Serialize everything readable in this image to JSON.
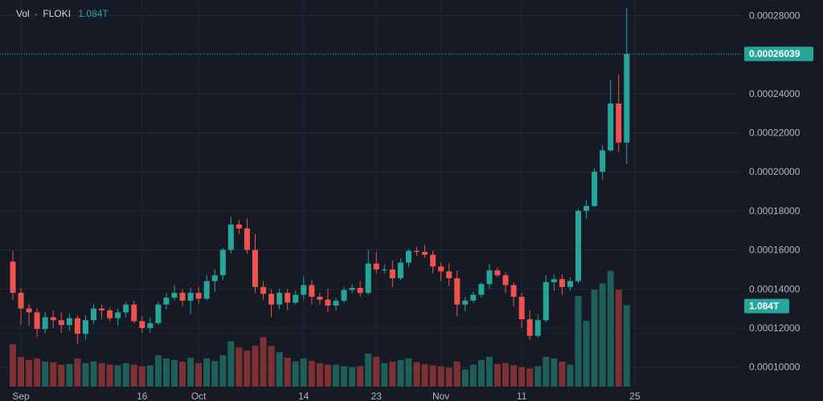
{
  "legend": {
    "vol_label": "Vol",
    "separator": "·",
    "symbol": "FLOKI",
    "volume_value": "1.084T"
  },
  "colors": {
    "background": "#161a25",
    "grid": "#232734",
    "up": "#26a69a",
    "down": "#ef5350",
    "vol_up": "#1e5f59",
    "vol_down": "#7d3134",
    "text": "#b2b5be"
  },
  "chart_data": {
    "type": "candlestick",
    "ylim": [
      9e-05,
      0.000288
    ],
    "y_ticks": [
      "0.00010000",
      "0.00012000",
      "0.00014000",
      "0.00016000",
      "0.00018000",
      "0.00020000",
      "0.00022000",
      "0.00024000",
      "0.00026000",
      "0.00028000"
    ],
    "x_ticks": [
      {
        "index": 1,
        "label": "Sep"
      },
      {
        "index": 16,
        "label": "16"
      },
      {
        "index": 23,
        "label": "Oct"
      },
      {
        "index": 36,
        "label": "14"
      },
      {
        "index": 45,
        "label": "23"
      },
      {
        "index": 53,
        "label": "Nov"
      },
      {
        "index": 63,
        "label": "11"
      },
      {
        "index": 77,
        "label": "25"
      }
    ],
    "last_price_label": "0.00026039",
    "last_price": 0.00026039,
    "last_volume_label": "1.084T",
    "candles": [
      [
        0.000154,
        0.0001595,
        0.0001345,
        0.000138,
        "d",
        0.135
      ],
      [
        0.000138,
        0.0001405,
        0.0001215,
        0.00013,
        "d",
        0.095
      ],
      [
        0.00013,
        0.0001325,
        0.000121,
        0.000128,
        "d",
        0.085
      ],
      [
        0.000128,
        0.00013,
        0.0001155,
        0.0001195,
        "d",
        0.09
      ],
      [
        0.0001195,
        0.000128,
        0.000117,
        0.0001255,
        "u",
        0.08
      ],
      [
        0.0001255,
        0.000129,
        0.00012,
        0.000124,
        "d",
        0.078
      ],
      [
        0.000124,
        0.000128,
        0.0001175,
        0.0001215,
        "d",
        0.07
      ],
      [
        0.0001215,
        0.0001275,
        0.0001185,
        0.000125,
        "u",
        0.072
      ],
      [
        0.000125,
        0.0001265,
        0.000112,
        0.000117,
        "d",
        0.09
      ],
      [
        0.000117,
        0.0001265,
        0.000114,
        0.000124,
        "u",
        0.075
      ],
      [
        0.000124,
        0.0001325,
        0.000122,
        0.00013,
        "u",
        0.08
      ],
      [
        0.00013,
        0.000132,
        0.0001245,
        0.000129,
        "d",
        0.075
      ],
      [
        0.000129,
        0.0001305,
        0.0001235,
        0.000125,
        "d",
        0.07
      ],
      [
        0.000125,
        0.00013,
        0.000121,
        0.000128,
        "u",
        0.068
      ],
      [
        0.000128,
        0.0001335,
        0.0001255,
        0.000132,
        "u",
        0.075
      ],
      [
        0.000132,
        0.000134,
        0.0001225,
        0.0001235,
        "d",
        0.07
      ],
      [
        0.0001235,
        0.000126,
        0.0001175,
        0.00012,
        "d",
        0.065
      ],
      [
        0.00012,
        0.0001255,
        0.0001175,
        0.0001225,
        "u",
        0.068
      ],
      [
        0.0001225,
        0.0001335,
        0.0001215,
        0.000132,
        "u",
        0.1
      ],
      [
        0.000132,
        0.000138,
        0.0001295,
        0.0001355,
        "u",
        0.09
      ],
      [
        0.0001355,
        0.000142,
        0.000134,
        0.000138,
        "u",
        0.085
      ],
      [
        0.000138,
        0.00014,
        0.000131,
        0.000134,
        "d",
        0.08
      ],
      [
        0.000134,
        0.0001405,
        0.000127,
        0.000138,
        "u",
        0.092
      ],
      [
        0.000138,
        0.000141,
        0.0001325,
        0.000135,
        "d",
        0.075
      ],
      [
        0.000135,
        0.000147,
        0.000134,
        0.000144,
        "u",
        0.09
      ],
      [
        0.000144,
        0.00015,
        0.0001385,
        0.000147,
        "u",
        0.082
      ],
      [
        0.000147,
        0.000161,
        0.0001445,
        0.00016,
        "u",
        0.1
      ],
      [
        0.00016,
        0.000177,
        0.000158,
        0.000173,
        "u",
        0.145
      ],
      [
        0.000173,
        0.0001755,
        0.000168,
        0.000171,
        "d",
        0.125
      ],
      [
        0.000171,
        0.000176,
        0.000158,
        0.00016,
        "d",
        0.115
      ],
      [
        0.00016,
        0.000168,
        0.000138,
        0.000141,
        "d",
        0.13
      ],
      [
        0.000141,
        0.000144,
        0.0001345,
        0.0001375,
        "d",
        0.158
      ],
      [
        0.0001375,
        0.00014,
        0.0001255,
        0.000132,
        "d",
        0.13
      ],
      [
        0.000132,
        0.00014,
        0.0001295,
        0.000138,
        "u",
        0.11
      ],
      [
        0.000138,
        0.00014,
        0.000129,
        0.000133,
        "d",
        0.092
      ],
      [
        0.000133,
        0.000139,
        0.000132,
        0.000137,
        "u",
        0.08
      ],
      [
        0.000137,
        0.0001465,
        0.0001345,
        0.000142,
        "u",
        0.09
      ],
      [
        0.000142,
        0.0001445,
        0.000132,
        0.000136,
        "d",
        0.082
      ],
      [
        0.000136,
        0.000138,
        0.000132,
        0.0001345,
        "d",
        0.075
      ],
      [
        0.0001345,
        0.00014,
        0.000128,
        0.0001315,
        "d",
        0.07
      ],
      [
        0.0001315,
        0.0001355,
        0.000129,
        0.000134,
        "u",
        0.07
      ],
      [
        0.000134,
        0.000141,
        0.000133,
        0.0001395,
        "u",
        0.065
      ],
      [
        0.0001395,
        0.0001425,
        0.000138,
        0.0001405,
        "u",
        0.062
      ],
      [
        0.0001405,
        0.000144,
        0.000136,
        0.000138,
        "d",
        0.065
      ],
      [
        0.000138,
        0.00016,
        0.000137,
        0.000153,
        "u",
        0.105
      ],
      [
        0.000153,
        0.000159,
        0.000148,
        0.00015,
        "d",
        0.095
      ],
      [
        0.00015,
        0.0001525,
        0.000148,
        0.00015,
        "u",
        0.075
      ],
      [
        0.00015,
        0.0001545,
        0.000141,
        0.0001455,
        "d",
        0.08
      ],
      [
        0.0001455,
        0.0001555,
        0.0001445,
        0.0001535,
        "u",
        0.085
      ],
      [
        0.0001535,
        0.0001605,
        0.000151,
        0.0001595,
        "u",
        0.09
      ],
      [
        0.0001595,
        0.0001615,
        0.000157,
        0.000159,
        "d",
        0.078
      ],
      [
        0.000159,
        0.0001625,
        0.000156,
        0.0001575,
        "d",
        0.072
      ],
      [
        0.0001575,
        0.0001595,
        0.000148,
        0.0001515,
        "d",
        0.068
      ],
      [
        0.0001515,
        0.0001535,
        0.000144,
        0.000149,
        "d",
        0.065
      ],
      [
        0.000149,
        0.000153,
        0.0001415,
        0.0001455,
        "d",
        0.06
      ],
      [
        0.0001455,
        0.0001495,
        0.000126,
        0.000132,
        "d",
        0.08
      ],
      [
        0.000132,
        0.000136,
        0.0001285,
        0.000134,
        "u",
        0.055
      ],
      [
        0.000134,
        0.0001385,
        0.000133,
        0.000137,
        "u",
        0.07
      ],
      [
        0.000137,
        0.0001435,
        0.0001355,
        0.0001425,
        "u",
        0.085
      ],
      [
        0.0001425,
        0.000153,
        0.00014,
        0.0001495,
        "u",
        0.095
      ],
      [
        0.0001495,
        0.000151,
        0.000146,
        0.000147,
        "d",
        0.072
      ],
      [
        0.000147,
        0.0001485,
        0.000138,
        0.000142,
        "d",
        0.075
      ],
      [
        0.000142,
        0.0001435,
        0.000131,
        0.000136,
        "d",
        0.068
      ],
      [
        0.000136,
        0.000138,
        0.00012,
        0.0001245,
        "d",
        0.062
      ],
      [
        0.0001245,
        0.000129,
        0.000114,
        0.000116,
        "d",
        0.058
      ],
      [
        0.000116,
        0.000127,
        0.000115,
        0.000124,
        "u",
        0.065
      ],
      [
        0.000124,
        0.000147,
        0.000123,
        0.0001435,
        "u",
        0.095
      ],
      [
        0.0001435,
        0.0001475,
        0.000139,
        0.000145,
        "u",
        0.09
      ],
      [
        0.000145,
        0.0001475,
        0.000137,
        0.000141,
        "d",
        0.08
      ],
      [
        0.000141,
        0.000146,
        0.000139,
        0.000144,
        "u",
        0.07
      ],
      [
        0.000144,
        0.000181,
        0.000143,
        0.00018,
        "u",
        0.29
      ],
      [
        0.00018,
        0.0001855,
        0.000176,
        0.0001825,
        "u",
        0.21
      ],
      [
        0.0001825,
        0.000202,
        0.000182,
        0.0002,
        "u",
        0.31
      ],
      [
        0.0002,
        0.0002135,
        0.000196,
        0.000211,
        "u",
        0.33
      ],
      [
        0.000211,
        0.000247,
        0.00021,
        0.000235,
        "u",
        0.37
      ],
      [
        0.000235,
        0.00025,
        0.00021,
        0.000215,
        "d",
        0.31
      ],
      [
        0.000215,
        0.000284,
        0.000204,
        0.00026039,
        "u",
        0.26
      ]
    ]
  }
}
